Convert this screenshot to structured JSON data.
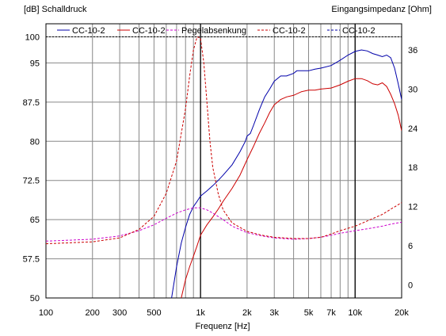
{
  "chart_data": {
    "type": "line",
    "y_left_label": "[dB]  Schalldruck",
    "y_right_label": "Eingangsimpedanz [Ohm]",
    "xlabel": "Frequenz [Hz]",
    "x_scale": "log",
    "xlim": [
      100,
      20000
    ],
    "ylim_left": [
      50,
      102.5
    ],
    "ylim_right": [
      -2,
      40
    ],
    "x_ticks": [
      {
        "v": 100,
        "label": "100"
      },
      {
        "v": 200,
        "label": "200"
      },
      {
        "v": 300,
        "label": "300"
      },
      {
        "v": 500,
        "label": "500"
      },
      {
        "v": 1000,
        "label": "1k"
      },
      {
        "v": 2000,
        "label": "2k"
      },
      {
        "v": 3000,
        "label": "3k"
      },
      {
        "v": 5000,
        "label": "5k"
      },
      {
        "v": 7000,
        "label": "7k"
      },
      {
        "v": 10000,
        "label": "10k"
      },
      {
        "v": 20000,
        "label": "20k"
      }
    ],
    "y_left_ticks": [
      {
        "v": 50,
        "label": "50"
      },
      {
        "v": 57.5,
        "label": "57.5"
      },
      {
        "v": 65,
        "label": "65"
      },
      {
        "v": 72.5,
        "label": "72.5"
      },
      {
        "v": 80,
        "label": "80"
      },
      {
        "v": 87.5,
        "label": "87.5"
      },
      {
        "v": 95,
        "label": "95"
      },
      {
        "v": 100,
        "label": "100"
      }
    ],
    "y_right_ticks": [
      {
        "v": 0,
        "label": "0"
      },
      {
        "v": 6,
        "label": "6"
      },
      {
        "v": 12,
        "label": "12"
      },
      {
        "v": 18,
        "label": "18"
      },
      {
        "v": 24,
        "label": "24"
      },
      {
        "v": 30,
        "label": "30"
      },
      {
        "v": 36,
        "label": "36"
      }
    ],
    "grid": true,
    "legend_position": "top",
    "series": [
      {
        "name": "CC-10-2",
        "axis": "left",
        "style": "solid",
        "color": "#0000aa",
        "x": [
          650,
          700,
          750,
          800,
          850,
          900,
          950,
          1000,
          1100,
          1200,
          1300,
          1400,
          1600,
          1800,
          1950,
          2000,
          2100,
          2200,
          2400,
          2600,
          2800,
          3000,
          3300,
          3600,
          4000,
          4200,
          4500,
          5000,
          5500,
          6000,
          7000,
          8000,
          9000,
          10000,
          11000,
          12000,
          13000,
          14000,
          15000,
          16000,
          17000,
          18000,
          19000,
          20000
        ],
        "y": [
          50,
          56,
          60.5,
          63.5,
          66,
          67.5,
          68.5,
          69.5,
          70.5,
          71.5,
          72.5,
          73.5,
          75.5,
          78,
          80,
          81,
          81.5,
          83,
          86,
          88.5,
          90,
          91.5,
          92.5,
          92.5,
          93,
          93.5,
          93.5,
          93.5,
          93.8,
          94,
          94.5,
          95.5,
          96.5,
          97.2,
          97.5,
          97.3,
          96.8,
          96.5,
          96.2,
          96.5,
          96,
          94,
          91,
          88
        ]
      },
      {
        "name": "CC-10-2",
        "axis": "left",
        "style": "solid",
        "color": "#cc0000",
        "x": [
          750,
          800,
          850,
          900,
          950,
          1000,
          1100,
          1200,
          1300,
          1400,
          1600,
          1800,
          2000,
          2200,
          2400,
          2600,
          2800,
          3000,
          3300,
          3600,
          4000,
          4500,
          5000,
          5500,
          6000,
          7000,
          8000,
          9000,
          10000,
          11000,
          12000,
          13000,
          14000,
          15000,
          16000,
          17000,
          18000,
          19000,
          20000
        ],
        "y": [
          50,
          53.5,
          56,
          58,
          60,
          62,
          64,
          65.5,
          67,
          68.5,
          71,
          73.5,
          76.5,
          79,
          81.5,
          83.5,
          85.5,
          87,
          88,
          88.5,
          88.8,
          89.5,
          89.8,
          89.8,
          90,
          90.2,
          90.8,
          91.5,
          92,
          92,
          91.6,
          91,
          90.8,
          91.2,
          90.5,
          89,
          87.2,
          85,
          82
        ]
      },
      {
        "name": "Pegelabsenkung",
        "axis": "right",
        "style": "dashed",
        "color": "#cc00cc",
        "x": [
          100,
          200,
          300,
          400,
          500,
          600,
          700,
          800,
          900,
          1000,
          1100,
          1200,
          1400,
          1600,
          2000,
          2500,
          3000,
          4000,
          5000,
          6000,
          7000,
          8000,
          10000,
          12000,
          15000,
          17000,
          20000
        ],
        "y": [
          6.7,
          7.0,
          7.5,
          8.3,
          9.2,
          10.2,
          11.0,
          11.5,
          11.8,
          11.8,
          11.5,
          11.0,
          10.0,
          9.0,
          8.0,
          7.5,
          7.2,
          7.0,
          7.1,
          7.3,
          7.6,
          7.9,
          8.3,
          8.6,
          9.0,
          9.3,
          9.6
        ]
      },
      {
        "name": "CC-10-2",
        "axis": "right",
        "style": "dashed",
        "color": "#cc0000",
        "x": [
          100,
          200,
          300,
          400,
          500,
          600,
          700,
          800,
          850,
          900,
          950,
          1000,
          1050,
          1100,
          1150,
          1200,
          1300,
          1400,
          1600,
          2000,
          2500,
          3000,
          4000,
          5000,
          6000,
          7000,
          8000,
          10000,
          12000,
          15000,
          17000,
          20000
        ],
        "y": [
          6.3,
          6.6,
          7.2,
          8.5,
          10.5,
          14,
          19,
          27,
          32,
          36,
          38,
          37.8,
          34,
          28,
          22,
          18,
          14,
          11.5,
          9.5,
          8.2,
          7.6,
          7.3,
          7.1,
          7.1,
          7.3,
          7.8,
          8.3,
          9.0,
          9.8,
          10.8,
          11.6,
          12.6
        ]
      },
      {
        "name": "CC-10-2",
        "axis": "right",
        "style": "dashed",
        "color": "#0000aa",
        "x": [],
        "y": []
      }
    ]
  }
}
